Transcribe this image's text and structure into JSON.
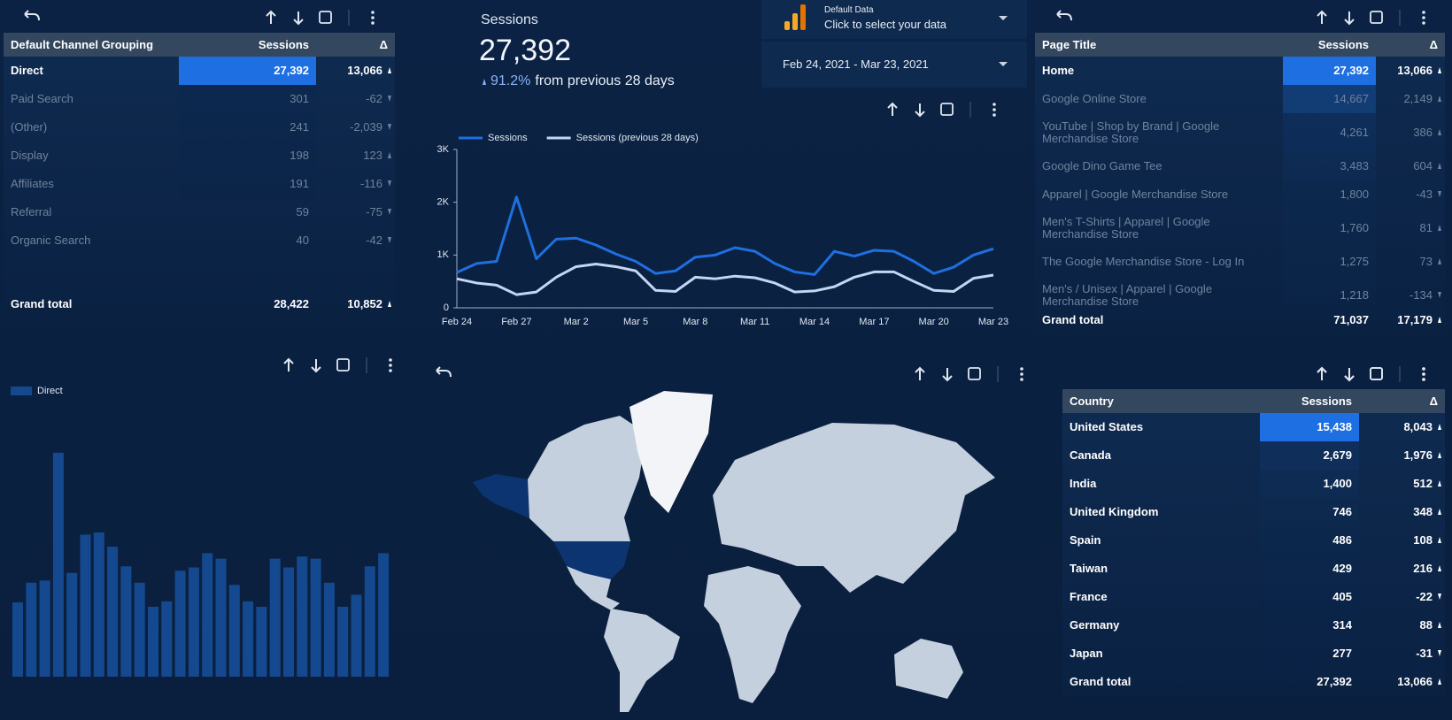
{
  "data_source": {
    "title": "Default Data",
    "subtitle": "Click to select your data"
  },
  "date_range": "Feb 24, 2021 - Mar 23, 2021",
  "scorecard": {
    "label": "Sessions",
    "value": "27,392",
    "change": "91.2%",
    "change_text": "from previous 28 days"
  },
  "channel_table": {
    "columns": [
      "Default Channel Grouping",
      "Sessions",
      "Δ"
    ],
    "rows": [
      [
        "Direct",
        "27,392",
        "13,066"
      ],
      [
        "Paid Search",
        "301",
        "-62"
      ],
      [
        "(Other)",
        "241",
        "-2,039"
      ],
      [
        "Display",
        "198",
        "123"
      ],
      [
        "Affiliates",
        "191",
        "-116"
      ],
      [
        "Referral",
        "59",
        "-75"
      ],
      [
        "Organic Search",
        "40",
        "-42"
      ]
    ],
    "total": [
      "Grand total",
      "28,422",
      "10,852"
    ]
  },
  "page_table": {
    "columns": [
      "Page Title",
      "Sessions",
      "Δ"
    ],
    "rows": [
      [
        "Home",
        "27,392",
        "13,066"
      ],
      [
        "Google Online Store",
        "14,667",
        "2,149"
      ],
      [
        "YouTube | Shop by Brand | Google Merchandise Store",
        "4,261",
        "386"
      ],
      [
        "Google Dino Game Tee",
        "3,483",
        "604"
      ],
      [
        "Apparel | Google Merchandise Store",
        "1,800",
        "-43"
      ],
      [
        "Men's T-Shirts | Apparel | Google Merchandise Store",
        "1,760",
        "81"
      ],
      [
        "The Google Merchandise Store - Log In",
        "1,275",
        "73"
      ],
      [
        "Men's / Unisex | Apparel | Google Merchandise Store",
        "1,218",
        "-134"
      ]
    ],
    "total": [
      "Grand total",
      "71,037",
      "17,179"
    ]
  },
  "country_table": {
    "columns": [
      "Country",
      "Sessions",
      "Δ"
    ],
    "rows": [
      [
        "United States",
        "15,438",
        "8,043"
      ],
      [
        "Canada",
        "2,679",
        "1,976"
      ],
      [
        "India",
        "1,400",
        "512"
      ],
      [
        "United Kingdom",
        "746",
        "348"
      ],
      [
        "Spain",
        "486",
        "108"
      ],
      [
        "Taiwan",
        "429",
        "216"
      ],
      [
        "France",
        "405",
        "-22"
      ],
      [
        "Germany",
        "314",
        "88"
      ],
      [
        "Japan",
        "277",
        "-31"
      ]
    ],
    "total": [
      "Grand total",
      "27,392",
      "13,066"
    ]
  },
  "chart_data": [
    {
      "type": "line",
      "categories": [
        "Feb 24",
        null,
        null,
        "Feb 27",
        null,
        null,
        "Mar 2",
        null,
        null,
        "Mar 5",
        null,
        null,
        "Mar 8",
        null,
        null,
        "Mar 11",
        null,
        null,
        "Mar 14",
        null,
        null,
        "Mar 17",
        null,
        null,
        "Mar 20",
        null,
        null,
        "Mar 23"
      ],
      "series": [
        {
          "name": "Sessions",
          "color": "#1f6fe0",
          "values": [
            670,
            840,
            880,
            2100,
            930,
            1300,
            1320,
            1190,
            1020,
            880,
            650,
            700,
            960,
            1000,
            1140,
            1070,
            840,
            680,
            630,
            1070,
            980,
            1090,
            1070,
            880,
            650,
            770,
            1000,
            1120
          ]
        },
        {
          "name": "Sessions (previous 28 days)",
          "color": "#c3d6f2",
          "values": [
            550,
            470,
            430,
            250,
            300,
            580,
            780,
            830,
            780,
            700,
            330,
            310,
            580,
            550,
            600,
            570,
            470,
            300,
            320,
            400,
            580,
            680,
            680,
            500,
            330,
            310,
            560,
            620
          ]
        }
      ],
      "ylim": [
        0,
        3000
      ],
      "yticks": [
        0,
        {
          "value": 1000,
          "label": "1K"
        },
        {
          "value": 2000,
          "label": "2K"
        },
        {
          "value": 3000,
          "label": "3K"
        }
      ],
      "grid": false
    },
    {
      "type": "bar",
      "series": [
        {
          "name": "Direct",
          "color": "#14498f",
          "values": [
            680,
            860,
            880,
            2050,
            950,
            1300,
            1320,
            1190,
            1010,
            860,
            640,
            690,
            970,
            1000,
            1130,
            1080,
            840,
            690,
            640,
            1080,
            1000,
            1100,
            1080,
            860,
            640,
            750,
            1010,
            1130
          ]
        }
      ]
    }
  ]
}
